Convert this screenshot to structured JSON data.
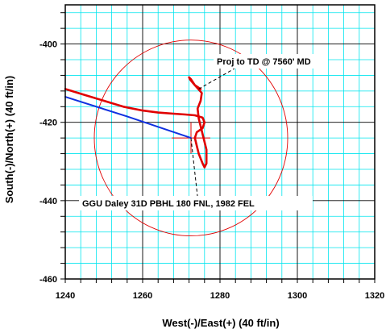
{
  "chart_data": {
    "type": "line",
    "xlabel": "West(-)/East(+) (40 ft/in)",
    "ylabel": "South(-)/North(+) (40 ft/in)",
    "xlim": [
      1240,
      1320
    ],
    "ylim": [
      -460,
      -390
    ],
    "x_ticks": [
      1240,
      1260,
      1280,
      1300,
      1320
    ],
    "y_ticks": [
      -400,
      -420,
      -440,
      -460
    ],
    "x_tick_labels": [
      "1240",
      "1260",
      "1280",
      "1300",
      "1320"
    ],
    "y_tick_labels": [
      "-400",
      "-420",
      "-440",
      "-460"
    ],
    "grid": true,
    "colors": {
      "grid_minor": "#00e5ee",
      "grid_major": "#000000",
      "wellpath": "#e00000",
      "planned_path": "#1030e0",
      "target_circle": "#e00000"
    },
    "series": [
      {
        "role": "actual wellpath",
        "x": [
          1240,
          1245,
          1250,
          1255,
          1260,
          1264,
          1268,
          1271,
          1273.5,
          1275.5,
          1276,
          1275.5,
          1274,
          1273.5,
          1274,
          1274.5,
          1275.5,
          1276,
          1276.5,
          1276.5,
          1275.5,
          1274.5,
          1274.2,
          1275,
          1275.3,
          1273.5,
          1272.5,
          1272,
          1272.2,
          1273.5,
          1275
        ],
        "y": [
          -411.5,
          -413,
          -414.5,
          -416,
          -417,
          -417.5,
          -417.8,
          -418,
          -418.2,
          -418.8,
          -420,
          -421.5,
          -422.5,
          -424,
          -426,
          -428,
          -430.5,
          -431.5,
          -430.5,
          -427,
          -423,
          -419,
          -416.5,
          -414.5,
          -412.5,
          -410.5,
          -409,
          -408.5,
          -409,
          -410.5,
          -411.5
        ]
      },
      {
        "role": "planned path",
        "x": [
          1240,
          1256,
          1272.5
        ],
        "y": [
          -413.5,
          -418.5,
          -424
        ]
      }
    ],
    "target": {
      "center": [
        1272.5,
        -424
      ],
      "radius_ft": 25
    },
    "annotations": [
      {
        "text": "Proj to TD @ 7560' MD",
        "points_to": [
          1274.5,
          -411.5
        ]
      },
      {
        "text": "GGU Daley 31D PBHL 180 FNL, 1982 FEL",
        "points_to": [
          1272.5,
          -424
        ]
      }
    ]
  }
}
